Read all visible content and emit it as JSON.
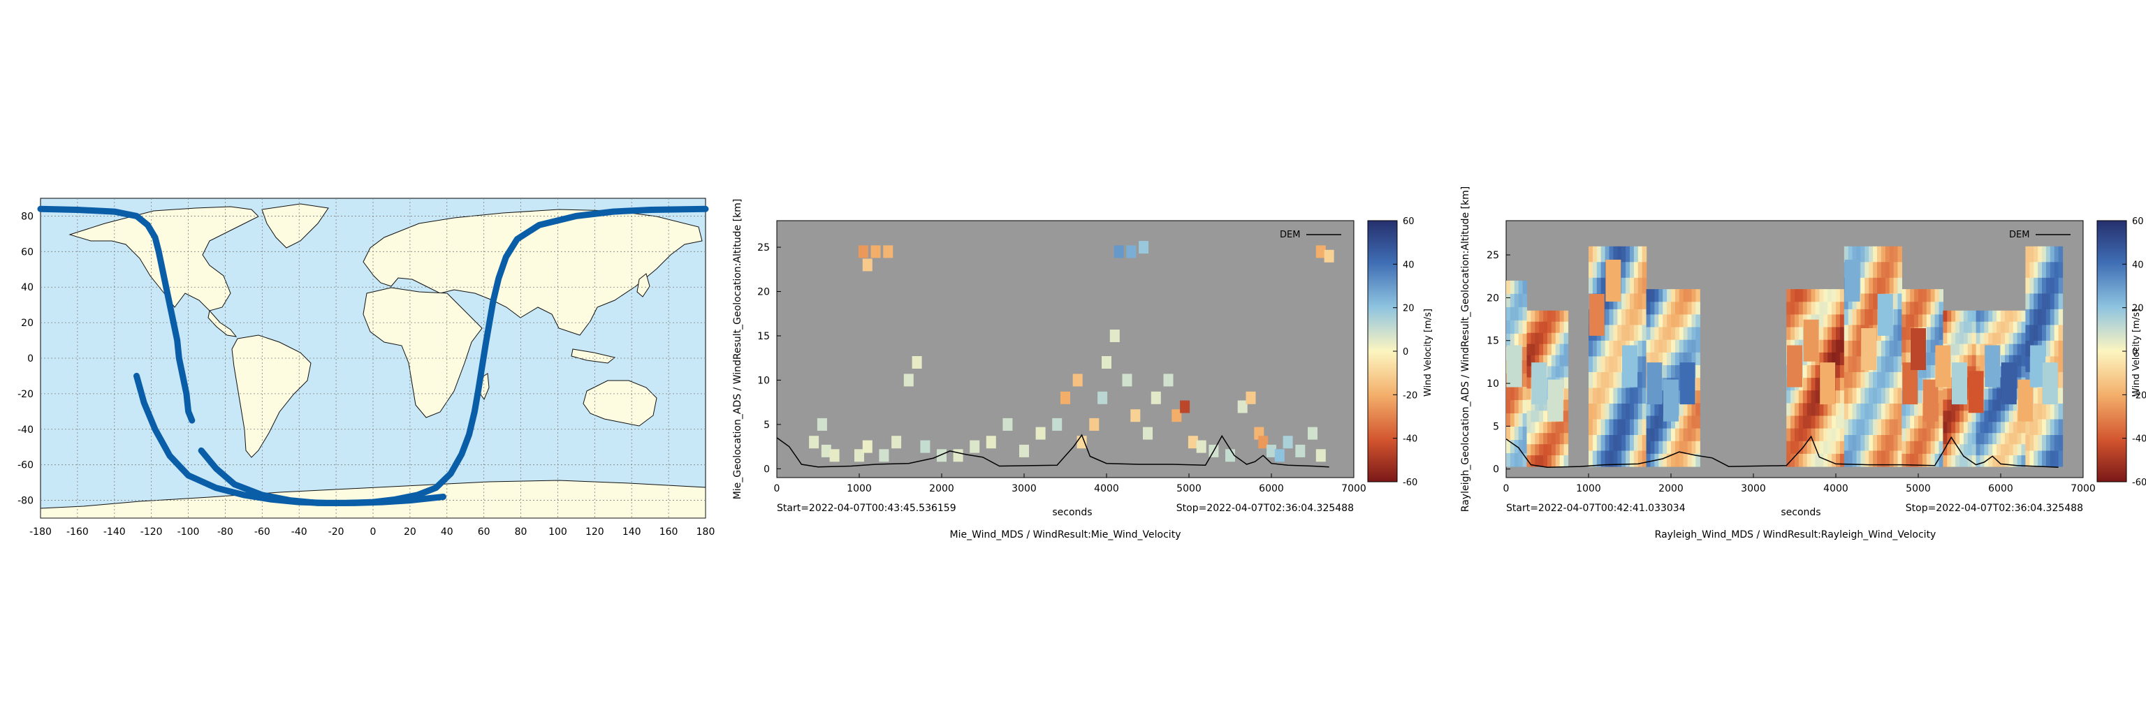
{
  "chart_data": [
    {
      "type": "scatter",
      "subtype": "world-map-ground-track",
      "xlim": [
        -180,
        180
      ],
      "ylim": [
        -90,
        90
      ],
      "x_ticks": [
        "-180",
        "-160",
        "-140",
        "-120",
        "-100",
        "-80",
        "-60",
        "-40",
        "-20",
        "0",
        "20",
        "40",
        "60",
        "80",
        "100",
        "120",
        "140",
        "160",
        "180"
      ],
      "y_ticks": [
        "80",
        "60",
        "40",
        "20",
        "0",
        "-20",
        "-40",
        "-60",
        "-80"
      ],
      "grid": true,
      "colors": {
        "ocean": "#c8e8f8",
        "land": "#fdfbe0",
        "track": "#0a5ea8",
        "grid": "#7f7f7f"
      },
      "series": [
        {
          "points": [
            [
              -180,
              84
            ],
            [
              -160,
              83.5
            ],
            [
              -140,
              82.5
            ],
            [
              -128,
              80
            ],
            [
              -122,
              75
            ],
            [
              -118,
              68
            ],
            [
              -116,
              60
            ],
            [
              -114,
              50
            ],
            [
              -112,
              40
            ],
            [
              -110,
              30
            ],
            [
              -108,
              20
            ],
            [
              -106,
              10
            ],
            [
              -105,
              0
            ],
            [
              -103,
              -10
            ],
            [
              -101,
              -20
            ],
            [
              -100,
              -30
            ],
            [
              -98,
              -35
            ]
          ]
        },
        {
          "points": [
            [
              -128,
              -10
            ],
            [
              -124,
              -25
            ],
            [
              -118,
              -40
            ],
            [
              -110,
              -55
            ],
            [
              -100,
              -66
            ],
            [
              -85,
              -73
            ],
            [
              -70,
              -77
            ],
            [
              -55,
              -79.5
            ],
            [
              -40,
              -81
            ],
            [
              -25,
              -81.5
            ],
            [
              -10,
              -81.5
            ],
            [
              5,
              -81
            ],
            [
              20,
              -80
            ],
            [
              38,
              -78
            ]
          ]
        },
        {
          "points": [
            [
              -93,
              -52
            ],
            [
              -85,
              -62
            ],
            [
              -75,
              -71
            ],
            [
              -60,
              -77
            ],
            [
              -45,
              -80
            ],
            [
              -30,
              -81.5
            ],
            [
              -15,
              -81.5
            ],
            [
              0,
              -81
            ],
            [
              12,
              -79.5
            ],
            [
              24,
              -77
            ],
            [
              34,
              -73
            ],
            [
              42,
              -65
            ],
            [
              48,
              -54
            ],
            [
              52,
              -43
            ],
            [
              55,
              -30
            ],
            [
              57,
              -18
            ],
            [
              59,
              -5
            ],
            [
              61,
              8
            ],
            [
              63,
              20
            ],
            [
              65,
              32
            ],
            [
              68,
              45
            ],
            [
              72,
              57
            ],
            [
              78,
              67
            ],
            [
              90,
              75
            ],
            [
              110,
              80
            ],
            [
              130,
              82.5
            ],
            [
              150,
              83.5
            ],
            [
              180,
              84
            ]
          ]
        }
      ]
    },
    {
      "type": "heatmap",
      "title": "Mie_Wind_MDS / WindResult:Mie_Wind_Velocity",
      "xlabel": "seconds",
      "ylabel": "Mie_Geolocation_ADS / WindResult_Geolocation:Altitude [km]",
      "xlim": [
        0,
        7000
      ],
      "ylim": [
        -1,
        28
      ],
      "x_ticks": [
        "0",
        "1000",
        "2000",
        "3000",
        "4000",
        "5000",
        "6000",
        "7000"
      ],
      "y_ticks": [
        "0",
        "5",
        "10",
        "15",
        "20",
        "25"
      ],
      "start_label": "Start=2022-04-07T00:43:45.536159",
      "stop_label": "Stop=2022-04-07T02:36:04.325488",
      "legend": {
        "entry": "DEM",
        "placement": "top-right"
      },
      "colorbar": {
        "label": "Wind Velocity [m/s]",
        "range": [
          -60,
          60
        ],
        "ticks": [
          "60",
          "40",
          "20",
          "0",
          "-20",
          "-40",
          "-60"
        ]
      },
      "background": "#999999",
      "dem_profile": [
        [
          0,
          3.5
        ],
        [
          150,
          2.5
        ],
        [
          300,
          0.5
        ],
        [
          500,
          0.2
        ],
        [
          900,
          0.3
        ],
        [
          1200,
          0.5
        ],
        [
          1600,
          0.6
        ],
        [
          1900,
          1.2
        ],
        [
          2100,
          2
        ],
        [
          2300,
          1.6
        ],
        [
          2500,
          1.3
        ],
        [
          2700,
          0.3
        ],
        [
          3400,
          0.4
        ],
        [
          3600,
          2.5
        ],
        [
          3700,
          3.8
        ],
        [
          3800,
          1.4
        ],
        [
          4000,
          0.6
        ],
        [
          4400,
          0.5
        ],
        [
          4800,
          0.5
        ],
        [
          5200,
          0.4
        ],
        [
          5300,
          2
        ],
        [
          5400,
          3.7
        ],
        [
          5550,
          1.5
        ],
        [
          5700,
          0.5
        ],
        [
          5800,
          0.8
        ],
        [
          5900,
          1.5
        ],
        [
          6000,
          0.6
        ],
        [
          6200,
          0.4
        ],
        [
          6500,
          0.3
        ],
        [
          6700,
          0.2
        ]
      ],
      "cells": [
        [
          1050,
          24.5,
          -25
        ],
        [
          1200,
          24.5,
          -20
        ],
        [
          1350,
          24.5,
          -18
        ],
        [
          1100,
          23,
          -12
        ],
        [
          4150,
          24.5,
          30
        ],
        [
          4300,
          24.5,
          25
        ],
        [
          4450,
          25,
          18
        ],
        [
          6600,
          24.5,
          -20
        ],
        [
          6700,
          24,
          -10
        ],
        [
          450,
          3,
          5
        ],
        [
          550,
          5,
          8
        ],
        [
          600,
          2,
          6
        ],
        [
          700,
          1.5,
          4
        ],
        [
          1000,
          1.5,
          5
        ],
        [
          1100,
          2.5,
          3
        ],
        [
          1300,
          1.5,
          8
        ],
        [
          1450,
          3,
          5
        ],
        [
          1600,
          10,
          6
        ],
        [
          1700,
          12,
          4
        ],
        [
          1800,
          2.5,
          10
        ],
        [
          2000,
          1.5,
          8
        ],
        [
          2200,
          1.5,
          5
        ],
        [
          2400,
          2.5,
          6
        ],
        [
          2600,
          3,
          4
        ],
        [
          2800,
          5,
          8
        ],
        [
          3000,
          2,
          6
        ],
        [
          3200,
          4,
          4
        ],
        [
          3400,
          5,
          10
        ],
        [
          3500,
          8,
          -20
        ],
        [
          3650,
          10,
          -15
        ],
        [
          3700,
          3,
          -8
        ],
        [
          3850,
          5,
          -12
        ],
        [
          3950,
          8,
          12
        ],
        [
          4000,
          12,
          5
        ],
        [
          4100,
          15,
          5
        ],
        [
          4250,
          10,
          8
        ],
        [
          4350,
          6,
          -10
        ],
        [
          4500,
          4,
          6
        ],
        [
          4600,
          8,
          5
        ],
        [
          4750,
          10,
          8
        ],
        [
          4850,
          6,
          -20
        ],
        [
          4950,
          7,
          -45
        ],
        [
          5050,
          3,
          -10
        ],
        [
          5150,
          2.5,
          5
        ],
        [
          5300,
          2,
          8
        ],
        [
          5500,
          1.5,
          10
        ],
        [
          5650,
          7,
          6
        ],
        [
          5750,
          8,
          -12
        ],
        [
          5850,
          4,
          -18
        ],
        [
          5900,
          3,
          -25
        ],
        [
          6000,
          2,
          12
        ],
        [
          6100,
          1.5,
          20
        ],
        [
          6200,
          3,
          15
        ],
        [
          6350,
          2,
          10
        ],
        [
          6500,
          4,
          8
        ],
        [
          6600,
          1.5,
          5
        ]
      ]
    },
    {
      "type": "heatmap",
      "title": "Rayleigh_Wind_MDS / WindResult:Rayleigh_Wind_Velocity",
      "xlabel": "seconds",
      "ylabel": "Rayleigh_Geolocation_ADS / WindResult_Geolocation:Altitude [km]",
      "xlim": [
        0,
        7000
      ],
      "ylim": [
        -1,
        29
      ],
      "x_ticks": [
        "0",
        "1000",
        "2000",
        "3000",
        "4000",
        "5000",
        "6000",
        "7000"
      ],
      "y_ticks": [
        "0",
        "5",
        "10",
        "15",
        "20",
        "25"
      ],
      "start_label": "Start=2022-04-07T00:42:41.033034",
      "stop_label": "Stop=2022-04-07T02:36:04.325488",
      "legend": {
        "entry": "DEM",
        "placement": "top-right"
      },
      "colorbar": {
        "label": "Wind Velocity [m/s]",
        "range": [
          -60,
          60
        ],
        "ticks": [
          "60",
          "40",
          "20",
          "0",
          "-20",
          "-40",
          "-60"
        ]
      },
      "background": "#999999",
      "dem_profile": [
        [
          0,
          3.5
        ],
        [
          150,
          2.5
        ],
        [
          300,
          0.5
        ],
        [
          500,
          0.2
        ],
        [
          900,
          0.3
        ],
        [
          1200,
          0.5
        ],
        [
          1600,
          0.6
        ],
        [
          1900,
          1.2
        ],
        [
          2100,
          2
        ],
        [
          2300,
          1.6
        ],
        [
          2500,
          1.3
        ],
        [
          2700,
          0.3
        ],
        [
          3400,
          0.4
        ],
        [
          3600,
          2.5
        ],
        [
          3700,
          3.8
        ],
        [
          3800,
          1.4
        ],
        [
          4000,
          0.6
        ],
        [
          4400,
          0.5
        ],
        [
          4800,
          0.5
        ],
        [
          5200,
          0.4
        ],
        [
          5300,
          2
        ],
        [
          5400,
          3.7
        ],
        [
          5550,
          1.5
        ],
        [
          5700,
          0.5
        ],
        [
          5800,
          0.8
        ],
        [
          5900,
          1.5
        ],
        [
          6000,
          0.6
        ],
        [
          6200,
          0.4
        ],
        [
          6500,
          0.3
        ],
        [
          6700,
          0.2
        ]
      ],
      "blocks": [
        {
          "x0": 0,
          "x1": 250,
          "ytop": 22
        },
        {
          "x0": 250,
          "x1": 750,
          "ytop": 18.5
        },
        {
          "x0": 1000,
          "x1": 1700,
          "ytop": 26
        },
        {
          "x0": 1700,
          "x1": 2350,
          "ytop": 21
        },
        {
          "x0": 3400,
          "x1": 4100,
          "ytop": 21
        },
        {
          "x0": 4100,
          "x1": 4800,
          "ytop": 26
        },
        {
          "x0": 4800,
          "x1": 5300,
          "ytop": 21
        },
        {
          "x0": 5300,
          "x1": 5700,
          "ytop": 18.5
        },
        {
          "x0": 5700,
          "x1": 6300,
          "ytop": 18.5
        },
        {
          "x0": 6300,
          "x1": 6750,
          "ytop": 26
        }
      ],
      "cells": [
        [
          100,
          12,
          10
        ],
        [
          400,
          10,
          15
        ],
        [
          600,
          8,
          8
        ],
        [
          1100,
          18,
          -30
        ],
        [
          1300,
          22,
          -20
        ],
        [
          1500,
          12,
          20
        ],
        [
          1800,
          10,
          30
        ],
        [
          2000,
          8,
          25
        ],
        [
          2200,
          10,
          40
        ],
        [
          3500,
          12,
          -30
        ],
        [
          3700,
          15,
          -25
        ],
        [
          3900,
          10,
          -20
        ],
        [
          4200,
          22,
          25
        ],
        [
          4400,
          14,
          -15
        ],
        [
          4600,
          18,
          20
        ],
        [
          4900,
          10,
          -35
        ],
        [
          5000,
          14,
          -45
        ],
        [
          5150,
          8,
          -30
        ],
        [
          5300,
          12,
          -20
        ],
        [
          5500,
          10,
          15
        ],
        [
          5700,
          9,
          -40
        ],
        [
          5900,
          12,
          25
        ],
        [
          6100,
          10,
          45
        ],
        [
          6300,
          8,
          -20
        ],
        [
          6450,
          12,
          20
        ],
        [
          6600,
          10,
          15
        ]
      ]
    }
  ]
}
